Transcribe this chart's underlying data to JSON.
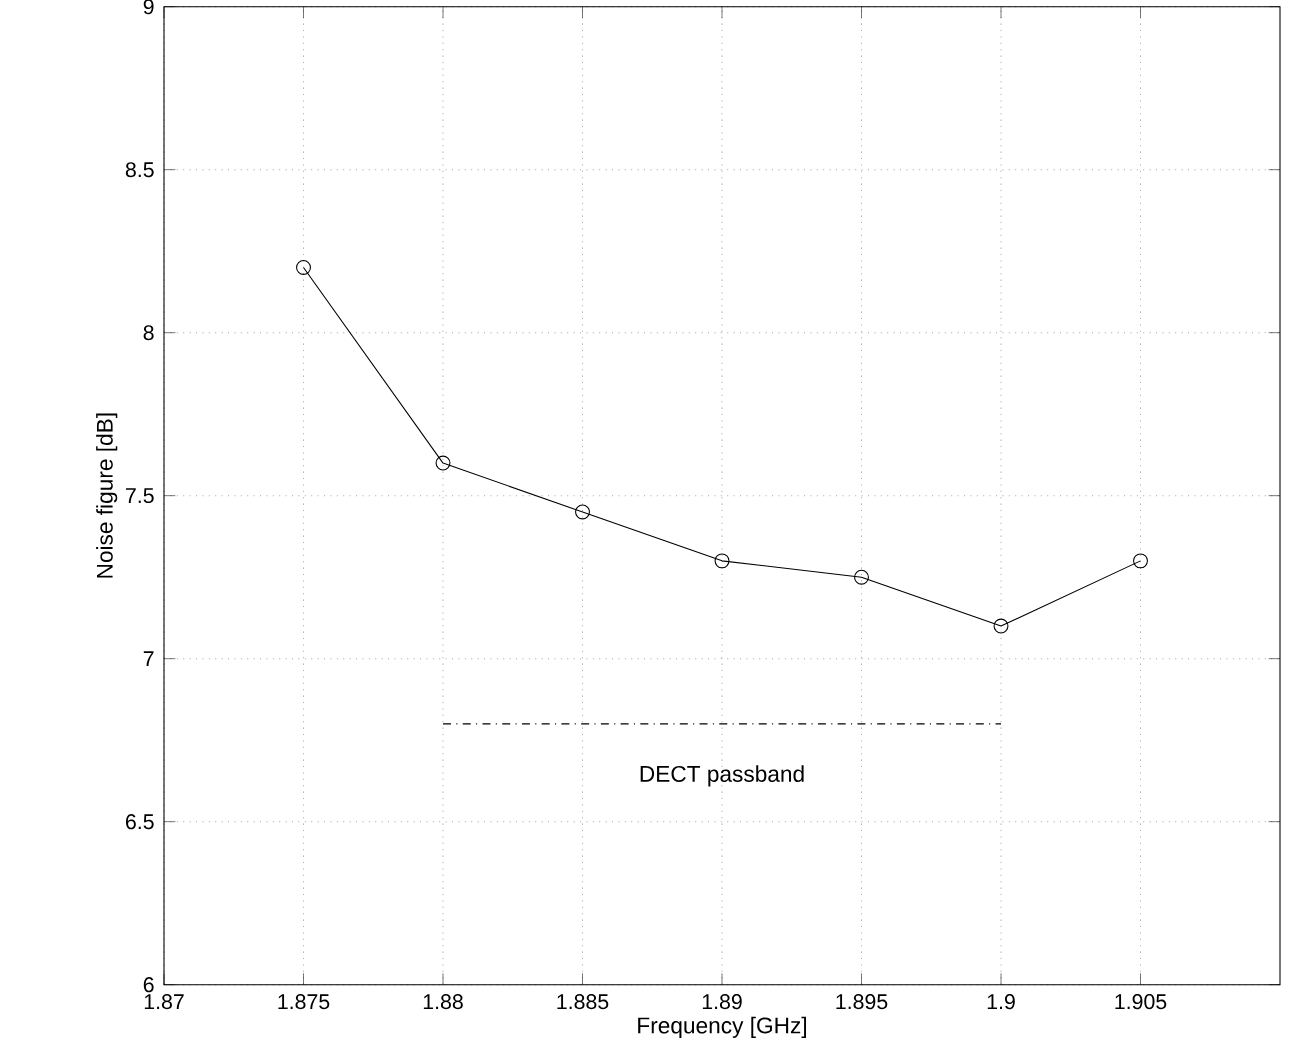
{
  "chart_data": {
    "type": "line",
    "xlabel": "Frequency [GHz]",
    "ylabel": "Noise figure [dB]",
    "x": [
      1.875,
      1.88,
      1.885,
      1.89,
      1.895,
      1.9,
      1.905
    ],
    "series": [
      {
        "color": "#000000",
        "values": [
          8.2,
          7.6,
          7.45,
          7.3,
          7.25,
          7.1,
          7.3
        ],
        "marker": "circle",
        "line_style": "solid"
      },
      {
        "name": "DECT passband",
        "color": "#000000",
        "x": [
          1.88,
          1.9
        ],
        "values": [
          6.8,
          6.8
        ],
        "marker": "none",
        "line_style": "dashed"
      }
    ],
    "xlim": [
      1.87,
      1.91
    ],
    "ylim": [
      6,
      9
    ],
    "xticks": [
      1.87,
      1.875,
      1.88,
      1.885,
      1.89,
      1.895,
      1.9,
      1.905
    ],
    "yticks": [
      6,
      6.5,
      7,
      7.5,
      8,
      8.5,
      9
    ],
    "grid": true,
    "legend": false
  }
}
